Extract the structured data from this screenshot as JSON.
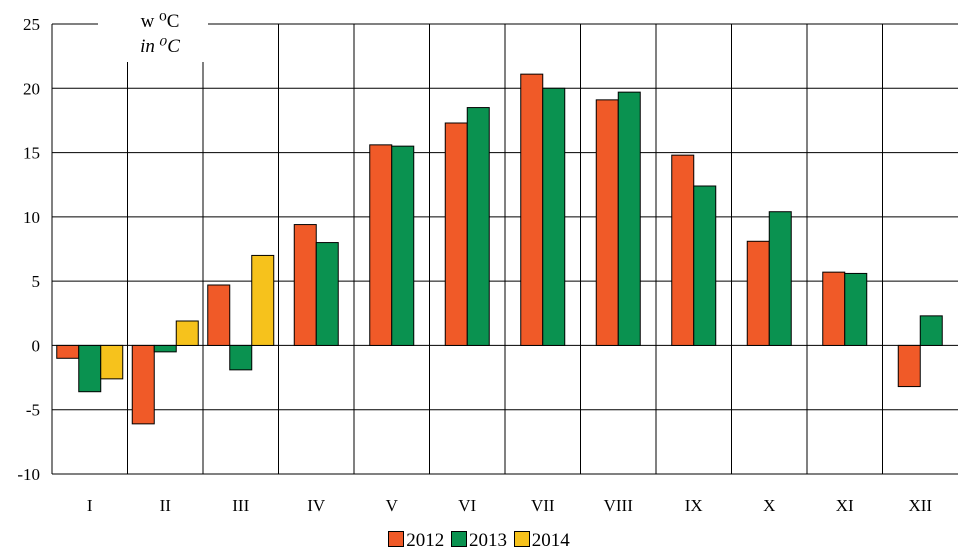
{
  "chart_data": {
    "type": "bar",
    "unit_label_1": "w ⁰C",
    "unit_label_2": "in ⁰C",
    "ylim": [
      -10,
      25
    ],
    "yticks": [
      "25",
      "20",
      "15",
      "10",
      "5",
      "0",
      "-5",
      "-10"
    ],
    "categories": [
      "I",
      "II",
      "III",
      "IV",
      "V",
      "VI",
      "VII",
      "VIII",
      "IX",
      "X",
      "XI",
      "XII"
    ],
    "series": [
      {
        "name": "2012",
        "color": "#f05a28",
        "values": [
          -1.0,
          -6.1,
          4.7,
          9.4,
          15.6,
          17.3,
          21.1,
          19.1,
          14.8,
          8.1,
          5.7,
          -3.2
        ]
      },
      {
        "name": "2013",
        "color": "#0a9250",
        "values": [
          -3.6,
          -0.5,
          -1.9,
          8.0,
          15.5,
          18.5,
          20.0,
          19.7,
          12.4,
          10.4,
          5.6,
          2.3
        ]
      },
      {
        "name": "2014",
        "color": "#f6c21c",
        "values": [
          -2.6,
          1.9,
          7.0,
          null,
          null,
          null,
          null,
          null,
          null,
          null,
          null,
          null
        ]
      }
    ],
    "grid": true,
    "legend_position": "bottom-center"
  }
}
